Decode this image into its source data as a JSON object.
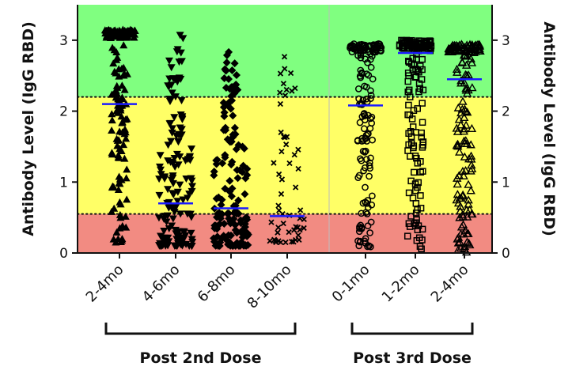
{
  "chart_data": {
    "type": "scatter",
    "title": "",
    "ylabel_left": "Antibody Level (IgG RBD)",
    "ylabel_right": "Antibody Level (IgG RBD)",
    "ylim": [
      0,
      3.5
    ],
    "yticks": [
      0,
      1,
      2,
      3
    ],
    "zones": [
      {
        "from": 0,
        "to": 0.55,
        "color": "#f28b82"
      },
      {
        "from": 0.55,
        "to": 2.2,
        "color": "#ffff66"
      },
      {
        "from": 2.2,
        "to": 3.5,
        "color": "#80ff80"
      }
    ],
    "threshold_lines": [
      0.55,
      2.2
    ],
    "median_color": "#1a1aff",
    "categories": [
      "2-4mo",
      "4-6mo",
      "6-8mo",
      "8-10mo",
      "0-1mo",
      "1-2mo",
      "2-4mo"
    ],
    "groups": [
      {
        "label": "Post 2nd Dose",
        "categories": [
          0,
          1,
          2,
          3
        ]
      },
      {
        "label": "Post 3rd Dose",
        "categories": [
          4,
          5,
          6
        ]
      }
    ],
    "series": [
      {
        "category": "2-4mo",
        "marker": "triangle-up",
        "median": 2.1,
        "range": [
          0.1,
          3.15
        ],
        "dense_top": true
      },
      {
        "category": "4-6mo",
        "marker": "triangle-down",
        "median": 0.7,
        "range": [
          0.1,
          3.1
        ],
        "dense_top": false
      },
      {
        "category": "6-8mo",
        "marker": "diamond",
        "median": 0.63,
        "range": [
          0.1,
          2.9
        ],
        "dense_top": false
      },
      {
        "category": "8-10mo",
        "marker": "x",
        "median": 0.52,
        "range": [
          0.15,
          2.85
        ],
        "dense_top": false
      },
      {
        "category": "0-1mo",
        "marker": "circle",
        "median": 2.08,
        "range": [
          0.05,
          2.95
        ],
        "dense_top": true
      },
      {
        "category": "1-2mo",
        "marker": "square",
        "median": 2.82,
        "range": [
          0.05,
          3.0
        ],
        "dense_top": true
      },
      {
        "category": "2-4mo",
        "marker": "triangle-up-open",
        "median": 2.45,
        "range": [
          0.0,
          2.95
        ],
        "dense_top": true
      }
    ]
  }
}
